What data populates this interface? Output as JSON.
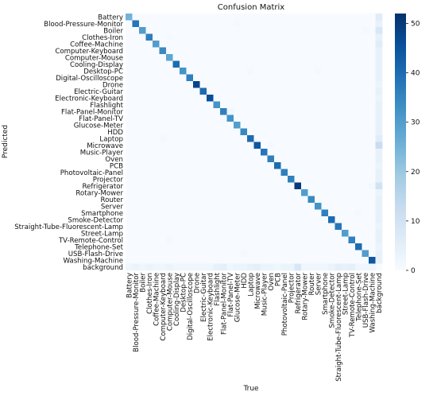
{
  "chart_data": {
    "type": "heatmap",
    "title": "Confusion Matrix",
    "xlabel": "True",
    "ylabel": "Predicted",
    "categories": [
      "Battery",
      "Blood-Pressure-Monitor",
      "Boiler",
      "Clothes-Iron",
      "Coffee-Machine",
      "Computer-Keyboard",
      "Computer-Mouse",
      "Cooling-Display",
      "Desktop-PC",
      "Digital-Oscilloscope",
      "Drone",
      "Electric-Guitar",
      "Electronic-Keyboard",
      "Flashlight",
      "Flat-Panel-Monitor",
      "Flat-Panel-TV",
      "Glucose-Meter",
      "HDD",
      "Laptop",
      "Microwave",
      "Music-Player",
      "Oven",
      "PCB",
      "Photovoltaic-Panel",
      "Projector",
      "Refrigerator",
      "Rotary-Mower",
      "Router",
      "Server",
      "Smartphone",
      "Smoke-Detector",
      "Straight-Tube-Fluorescent-Lamp",
      "Street-Lamp",
      "TV-Remote-Control",
      "Telephone-Set",
      "USB-Flash-Drive",
      "Washing-Machine",
      "background"
    ],
    "diagonal": [
      25,
      38,
      30,
      36,
      30,
      34,
      28,
      40,
      32,
      36,
      48,
      40,
      46,
      32,
      36,
      32,
      30,
      34,
      40,
      44,
      38,
      36,
      40,
      36,
      36,
      50,
      30,
      34,
      32,
      36,
      40,
      38,
      30,
      36,
      40,
      30,
      44,
      0
    ],
    "background_column": [
      6,
      4,
      8,
      4,
      6,
      4,
      4,
      4,
      4,
      4,
      3,
      4,
      3,
      4,
      4,
      4,
      4,
      4,
      6,
      12,
      4,
      4,
      3,
      4,
      4,
      10,
      3,
      4,
      4,
      4,
      4,
      3,
      4,
      4,
      3,
      4,
      4,
      0
    ],
    "background_row": [
      2,
      3,
      2,
      3,
      2,
      2,
      3,
      2,
      2,
      2,
      2,
      2,
      2,
      4,
      5,
      2,
      3,
      3,
      4,
      5,
      3,
      3,
      2,
      3,
      3,
      8,
      2,
      2,
      2,
      2,
      3,
      5,
      4,
      5,
      2,
      2,
      2,
      0
    ],
    "extra_cells": [
      {
        "row": "Battery",
        "col": "Battery",
        "value": 25
      },
      {
        "row": "Blood-Pressure-Monitor",
        "col": "Glucose-Meter",
        "value": 1
      },
      {
        "row": "Boiler",
        "col": "USB-Flash-Drive",
        "value": 1
      },
      {
        "row": "Clothes-Iron",
        "col": "Computer-Mouse",
        "value": 1
      },
      {
        "row": "Desktop-PC",
        "col": "Laptop",
        "value": 1
      },
      {
        "row": "Desktop-PC",
        "col": "Server",
        "value": 1
      },
      {
        "row": "Flat-Panel-Monitor",
        "col": "Flat-Panel-TV",
        "value": 2
      },
      {
        "row": "Flat-Panel-TV",
        "col": "Flat-Panel-Monitor",
        "value": 1
      },
      {
        "row": "Laptop",
        "col": "Computer-Keyboard",
        "value": 1
      },
      {
        "row": "Microwave",
        "col": "Oven",
        "value": 1
      },
      {
        "row": "Refrigerator",
        "col": "Washing-Machine",
        "value": 1
      },
      {
        "row": "Smartphone",
        "col": "Telephone-Set",
        "value": 1
      },
      {
        "row": "TV-Remote-Control",
        "col": "Computer-Mouse",
        "value": 1
      },
      {
        "row": "USB-Flash-Drive",
        "col": "HDD",
        "value": 1
      }
    ],
    "colorbar": {
      "min": 0,
      "max": 52,
      "ticks": [
        0,
        10,
        20,
        30,
        40,
        50
      ]
    },
    "colormap": [
      "#f7fbff",
      "#deebf7",
      "#c6dbef",
      "#9ecae1",
      "#6baed6",
      "#4292c6",
      "#2171b5",
      "#08519c",
      "#08306b"
    ]
  }
}
